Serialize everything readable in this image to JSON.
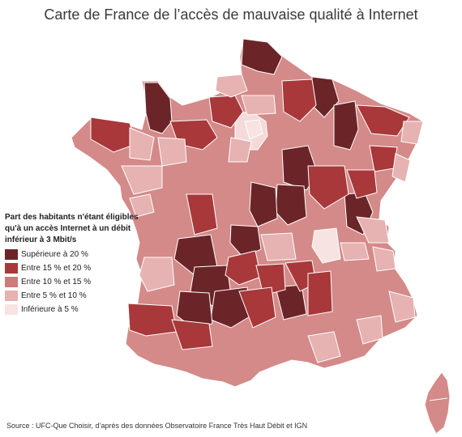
{
  "title": "Carte de France de l’accès de mauvaise qualité à Internet",
  "legend": {
    "title": "Part des habitants n'étant éligibles qu'à un accès Internet à un débit inférieur à 3 Mbit/s",
    "items": [
      {
        "label": "Supérieure à 20 %",
        "color": "#6b2528"
      },
      {
        "label": "Entre 15 % et 20 %",
        "color": "#a8383a"
      },
      {
        "label": "Entre 10 % et 15 %",
        "color": "#cf7a7a"
      },
      {
        "label": "Entre 5 % et 10 %",
        "color": "#e6b2b2"
      },
      {
        "label": "Inférieure à 5 %",
        "color": "#f6e3e2"
      }
    ]
  },
  "source": "Source : UFC-Que Choisir, d’après des données Observatoire France Très Haut Débit et IGN",
  "map": {
    "land_color": "#d38a88",
    "border_color": "#ffffff"
  }
}
